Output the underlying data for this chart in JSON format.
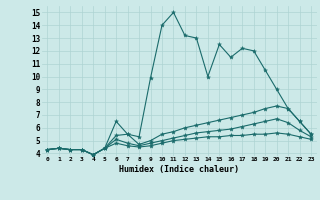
{
  "xlabel": "Humidex (Indice chaleur)",
  "xlim": [
    -0.5,
    23.5
  ],
  "ylim": [
    3.8,
    15.5
  ],
  "xticks": [
    0,
    1,
    2,
    3,
    4,
    5,
    6,
    7,
    8,
    9,
    10,
    11,
    12,
    13,
    14,
    15,
    16,
    17,
    18,
    19,
    20,
    21,
    22,
    23
  ],
  "yticks": [
    4,
    5,
    6,
    7,
    8,
    9,
    10,
    11,
    12,
    13,
    14,
    15
  ],
  "bg_color": "#cce9e8",
  "line_color": "#1a6b6b",
  "grid_color": "#aed4d3",
  "series": [
    [
      4.3,
      4.4,
      4.3,
      4.3,
      3.9,
      4.4,
      6.5,
      5.5,
      5.3,
      9.9,
      14.0,
      15.0,
      13.2,
      13.0,
      10.0,
      12.5,
      11.5,
      12.2,
      12.0,
      10.5,
      9.0,
      7.5,
      6.5,
      5.5
    ],
    [
      4.3,
      4.4,
      4.3,
      4.3,
      3.9,
      4.4,
      5.4,
      5.5,
      4.7,
      5.0,
      5.5,
      5.7,
      6.0,
      6.2,
      6.4,
      6.6,
      6.8,
      7.0,
      7.2,
      7.5,
      7.7,
      7.5,
      6.5,
      5.5
    ],
    [
      4.3,
      4.4,
      4.3,
      4.3,
      3.9,
      4.4,
      5.1,
      4.8,
      4.6,
      4.8,
      5.0,
      5.2,
      5.4,
      5.6,
      5.7,
      5.8,
      5.9,
      6.1,
      6.3,
      6.5,
      6.7,
      6.4,
      5.8,
      5.3
    ],
    [
      4.3,
      4.4,
      4.3,
      4.3,
      3.9,
      4.4,
      4.8,
      4.6,
      4.5,
      4.6,
      4.8,
      5.0,
      5.1,
      5.2,
      5.3,
      5.3,
      5.4,
      5.4,
      5.5,
      5.5,
      5.6,
      5.5,
      5.3,
      5.1
    ]
  ]
}
